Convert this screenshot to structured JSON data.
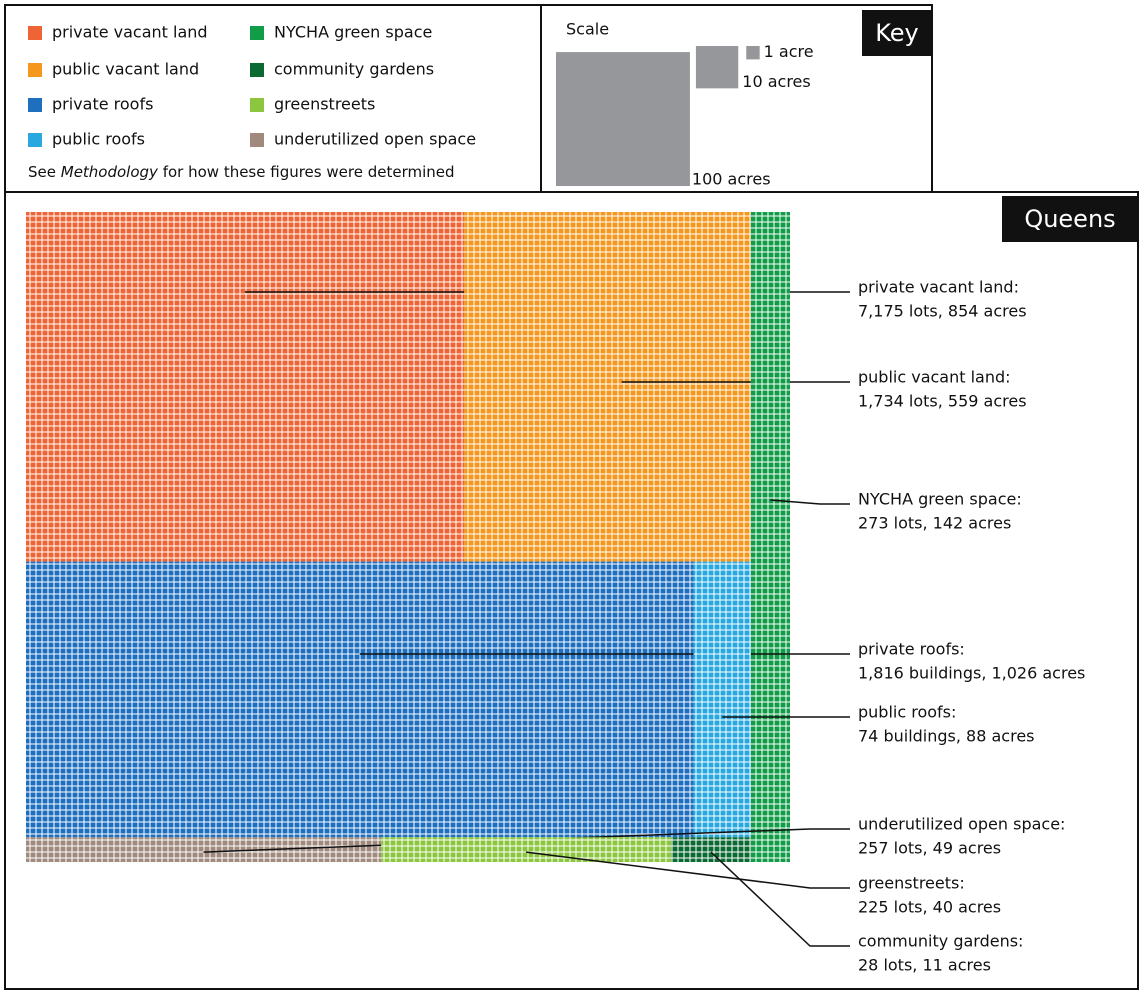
{
  "chart_data": {
    "type": "treemap",
    "title": "Queens",
    "key_title": "Key",
    "scale_title": "Scale",
    "scale": [
      {
        "value": 1,
        "label": "1 acre"
      },
      {
        "value": 10,
        "label": "10 acres"
      },
      {
        "value": 100,
        "label": "100 acres"
      }
    ],
    "note": {
      "before": "See ",
      "italic": "Methodology",
      "after": " for how these figures were determined"
    },
    "categories": [
      "private vacant land",
      "public vacant land",
      "NYCHA green space",
      "private roofs",
      "public roofs",
      "underutilized open space",
      "greenstreets",
      "community gardens"
    ],
    "colors": [
      "#ef6434",
      "#f5971d",
      "#119c48",
      "#1f6fbf",
      "#29a8e0",
      "#a08a7e",
      "#8cc63f",
      "#0b6a33"
    ],
    "callout_titles": [
      "private vacant land:",
      "public vacant land:",
      "NYCHA green space:",
      "private roofs:",
      "public roofs:",
      "underutilized open space:",
      "greenstreets:",
      "community gardens:"
    ],
    "values": [
      854,
      559,
      142,
      1026,
      88,
      49,
      40,
      11
    ],
    "value_labels": [
      "7,175 lots, 854 acres",
      "1,734 lots, 559 acres",
      "273 lots, 142 acres",
      "1,816 buildings, 1,026 acres",
      "74 buildings, 88 acres",
      "257 lots, 49 acres",
      "225 lots, 40 acres",
      "28 lots, 11 acres"
    ]
  }
}
